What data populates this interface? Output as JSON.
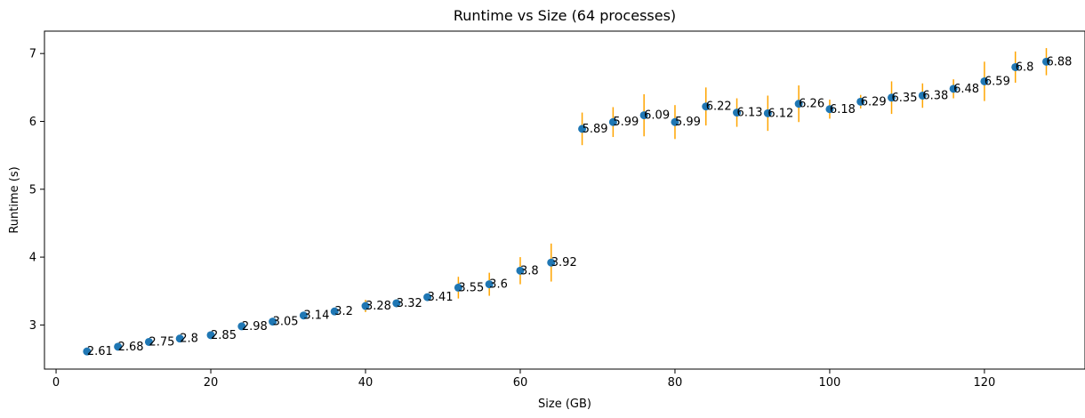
{
  "chart_data": {
    "type": "scatter",
    "title": "Runtime vs Size (64 processes)",
    "xlabel": "Size (GB)",
    "ylabel": "Runtime (s)",
    "xlim": [
      -1.5,
      133
    ],
    "ylim": [
      2.35,
      7.33
    ],
    "xticks": [
      0,
      20,
      40,
      60,
      80,
      100,
      120
    ],
    "yticks": [
      3,
      4,
      5,
      6,
      7
    ],
    "grid": false,
    "marker_color": "#1f77b4",
    "errorbar_color": "#ffa500",
    "x": [
      4,
      8,
      12,
      16,
      20,
      24,
      28,
      32,
      36,
      40,
      44,
      48,
      52,
      56,
      60,
      64,
      68,
      72,
      76,
      80,
      84,
      88,
      92,
      96,
      100,
      104,
      108,
      112,
      116,
      120,
      124,
      128
    ],
    "y": [
      2.61,
      2.68,
      2.75,
      2.8,
      2.85,
      2.98,
      3.05,
      3.14,
      3.2,
      3.28,
      3.32,
      3.41,
      3.55,
      3.6,
      3.8,
      3.92,
      5.89,
      5.99,
      6.09,
      5.99,
      6.22,
      6.13,
      6.12,
      6.26,
      6.18,
      6.29,
      6.35,
      6.38,
      6.48,
      6.59,
      6.8,
      6.88
    ],
    "labels": [
      "2.61",
      "2.68",
      "2.75",
      "2.8",
      "2.85",
      "2.98",
      "3.05",
      "3.14",
      "3.2",
      "3.28",
      "3.32",
      "3.41",
      "3.55",
      "3.6",
      "3.8",
      "3.92",
      "5.89",
      "5.99",
      "6.09",
      "5.99",
      "6.22",
      "6.13",
      "6.12",
      "6.26",
      "6.18",
      "6.29",
      "6.35",
      "6.38",
      "6.48",
      "6.59",
      "6.8",
      "6.88"
    ],
    "yerr": [
      0.04,
      0.03,
      0.03,
      0.04,
      0.04,
      0.03,
      0.03,
      0.05,
      0.04,
      0.09,
      0.06,
      0.05,
      0.16,
      0.17,
      0.2,
      0.28,
      0.24,
      0.22,
      0.31,
      0.25,
      0.28,
      0.21,
      0.26,
      0.27,
      0.14,
      0.1,
      0.24,
      0.18,
      0.14,
      0.29,
      0.23,
      0.2
    ]
  }
}
